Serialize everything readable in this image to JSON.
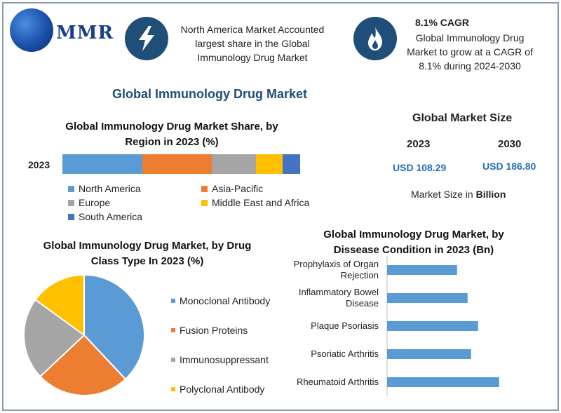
{
  "brand": {
    "name": "MMR"
  },
  "highlights": {
    "left_text": "North America Market Accounted largest share in the Global Immunology Drug Market",
    "right_title": "8.1% CAGR",
    "right_text": "Global Immunology Drug Market to grow at a CAGR of 8.1% during 2024-2030"
  },
  "main_title": "Global Immunology Drug Market",
  "market_size": {
    "title": "Global Market Size",
    "year1": "2023",
    "value1": "USD 108.29",
    "year2": "2030",
    "value2": "USD 186.80",
    "note_prefix": "Market Size in ",
    "note_bold": "Billion"
  },
  "colors": {
    "blue": "#5b9bd5",
    "orange": "#ed7d31",
    "gray": "#a5a5a5",
    "yellow": "#ffc000",
    "darkblue": "#4472c4",
    "icon_bg": "#1f4e79"
  },
  "chart_data": [
    {
      "type": "bar",
      "orientation": "horizontal-stacked",
      "title": "Global Immunology Drug Market Share, by Region in 2023 (%)",
      "categories": [
        "2023"
      ],
      "series": [
        {
          "name": "North America",
          "values": [
            33.5
          ]
        },
        {
          "name": "Asia-Pacific",
          "values": [
            29.2
          ]
        },
        {
          "name": "Europe",
          "values": [
            18.8
          ]
        },
        {
          "name": "Middle East and Africa",
          "values": [
            11.2
          ]
        },
        {
          "name": "South America",
          "values": [
            7.3
          ]
        }
      ]
    },
    {
      "type": "pie",
      "title": "Global Immunology Drug Market, by Drug Class Type In 2023 (%)",
      "labels": [
        "Monoclonal Antibody",
        "Fusion Proteins",
        "Immunosuppressant",
        "Polyclonal Antibody"
      ],
      "values": [
        38,
        25,
        22,
        15
      ]
    },
    {
      "type": "bar",
      "orientation": "horizontal",
      "title": "Global Immunology Drug Market, by Dissease Condition in 2023 (Bn)",
      "categories": [
        "Prophylaxis of Organ Rejection",
        "Inflammatory Bowel Disease",
        "Plaque Psoriasis",
        "Psoriatic Arthritis",
        "Rheumatoid Arthritis"
      ],
      "values": [
        10.0,
        11.5,
        13.0,
        12.0,
        16.0
      ]
    }
  ]
}
